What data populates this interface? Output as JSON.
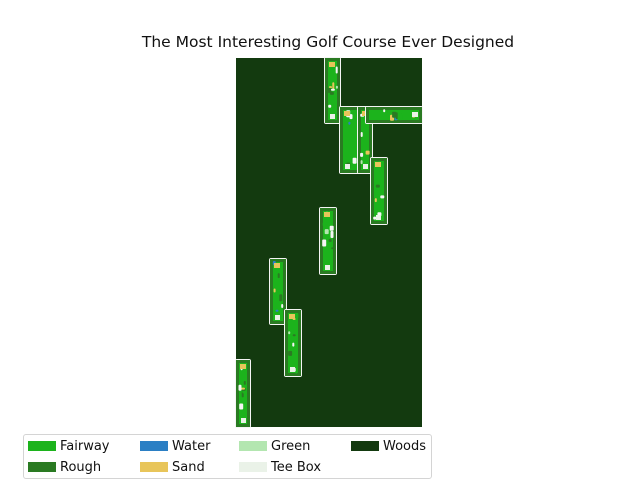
{
  "title": "The Most Interesting Golf Course Ever Designed",
  "colors": {
    "fairway": "#1cb31c",
    "rough": "#2a7a22",
    "water": "#2b7fc4",
    "sand": "#e8c55a",
    "green": "#b3e6b0",
    "tee_box": "#eaf2e8",
    "woods": "#133a0f",
    "outline": "#f5f5f5"
  },
  "legend": {
    "items": [
      {
        "label": "Fairway",
        "color": "#1cb31c",
        "icon": "fairway-swatch"
      },
      {
        "label": "Rough",
        "color": "#2a7a22",
        "icon": "rough-swatch"
      },
      {
        "label": "Water",
        "color": "#2b7fc4",
        "icon": "water-swatch"
      },
      {
        "label": "Sand",
        "color": "#e8c55a",
        "icon": "sand-swatch"
      },
      {
        "label": "Green",
        "color": "#b3e6b0",
        "icon": "green-swatch"
      },
      {
        "label": "Tee Box",
        "color": "#eaf2e8",
        "icon": "tee-box-swatch"
      },
      {
        "label": "Woods",
        "color": "#133a0f",
        "icon": "woods-swatch"
      }
    ]
  }
}
